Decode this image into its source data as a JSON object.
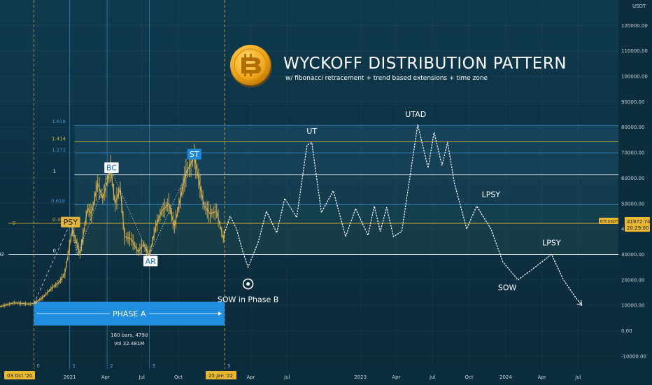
{
  "chart_data": {
    "type": "line",
    "title": "WYCKOFF DISTRIBUTION PATTERN",
    "subtitle": "w/ fibonacci retracement + trend based extensions + time zone",
    "currency": "USDT",
    "ylim": [
      -15000,
      130000
    ],
    "y_ticks": [
      "120000.00",
      "110000.00",
      "100000.00",
      "90000.00",
      "80000.00",
      "70000.00",
      "60000.00",
      "50000.00",
      "40000.00",
      "30000.00",
      "20000.00",
      "10000.00",
      "0.00",
      "-10000.00"
    ],
    "y_tick_values": [
      120000,
      110000,
      100000,
      90000,
      80000,
      70000,
      60000,
      50000,
      40000,
      30000,
      20000,
      10000,
      0,
      -10000
    ],
    "x_ticks": [
      "2021",
      "Apr",
      "Jul",
      "Oct",
      "Apr",
      "Jul",
      "2023",
      "Apr",
      "Jul",
      "Oct",
      "2024",
      "Apr",
      "Jul"
    ],
    "x_tick_dates": [
      "2021-01-01",
      "2021-04-01",
      "2021-07-01",
      "2021-10-01",
      "2022-04-01",
      "2022-07-01",
      "2023-01-01",
      "2023-04-01",
      "2023-07-01",
      "2023-10-01",
      "2024-01-01",
      "2024-04-01",
      "2024-07-01"
    ],
    "x_range": [
      "2020-07-10",
      "2024-10-10"
    ],
    "x_axis_flags": {
      "start_label": "03 Oct '20",
      "end_label": "25 Jan '22"
    },
    "time_zone_labels": [
      "0",
      "1",
      "2",
      "3",
      "5"
    ],
    "time_zone_dates": [
      "2020-10-03",
      "2021-01-01",
      "2021-04-05",
      "2021-07-20",
      "2022-01-25"
    ],
    "price_label": {
      "symbol": "BTCUSDT",
      "price": "41972.74",
      "countdown": "20:29:00",
      "value": 41972.74
    },
    "fib_levels": [
      {
        "label": "1.618",
        "value": 80700,
        "color": "#3a8fd4"
      },
      {
        "label": "1.414",
        "value": 74300,
        "color": "#d4b332"
      },
      {
        "label": "1.272",
        "value": 69900,
        "color": "#3a8fd4"
      },
      {
        "label": "1",
        "value": 61300,
        "color": "#e8edf0"
      },
      {
        "label": "0.618",
        "value": 49500,
        "color": "#3a8fd4"
      },
      {
        "label": "0.382",
        "value": 42200,
        "color": "#d4b332"
      },
      {
        "label": "0",
        "value": 42200,
        "color": "#d4b332"
      },
      {
        "label": "0",
        "value": 30000,
        "color": "#e8edf0"
      },
      {
        "label": "0.382",
        "value": 30000,
        "color": "#e8edf0"
      }
    ],
    "wyckoff_labels": [
      {
        "text": "PSY",
        "date": "2021-01-03",
        "value": 42300,
        "boxed": true,
        "box_color": "#e4b53b",
        "text_color": "#1b1b1b"
      },
      {
        "text": "BC",
        "date": "2021-04-16",
        "value": 63700,
        "boxed": true,
        "box_color": "#ffffff",
        "text_color": "#1a6fb5"
      },
      {
        "text": "AR",
        "date": "2021-07-23",
        "value": 27000,
        "boxed": true,
        "box_color": "#ffffff",
        "text_color": "#1a6fb5"
      },
      {
        "text": "ST",
        "date": "2021-11-10",
        "value": 69000,
        "boxed": true,
        "box_color": "#1e88d8",
        "text_color": "#ffffff"
      },
      {
        "text": "UT",
        "date": "2022-09-01",
        "value": 77500,
        "boxed": false
      },
      {
        "text": "UTAD",
        "date": "2023-05-20",
        "value": 84000,
        "boxed": false
      },
      {
        "text": "LPSY",
        "date": "2023-11-25",
        "value": 52500,
        "boxed": false
      },
      {
        "text": "LPSY",
        "date": "2024-04-25",
        "value": 33500,
        "boxed": false
      },
      {
        "text": "SOW",
        "date": "2024-01-05",
        "value": 16000,
        "boxed": false
      },
      {
        "text": "SOW in Phase B",
        "date": "2022-03-25",
        "value": 17000,
        "boxed": false
      }
    ],
    "phase_a": {
      "label": "PHASE A",
      "start": "2020-10-03",
      "end": "2022-01-25",
      "stats": [
        "160 bars, 479d",
        "Vol 32.481M"
      ]
    },
    "projection": {
      "dates": [
        "2022-01-25",
        "2022-02-08",
        "2022-02-24",
        "2022-03-12",
        "2022-03-25",
        "2022-04-20",
        "2022-05-10",
        "2022-06-05",
        "2022-06-25",
        "2022-07-25",
        "2022-08-20",
        "2022-09-01",
        "2022-09-25",
        "2022-10-25",
        "2022-11-25",
        "2022-12-20",
        "2023-01-20",
        "2023-02-05",
        "2023-02-20",
        "2023-03-08",
        "2023-03-25",
        "2023-04-15",
        "2023-05-25",
        "2023-06-20",
        "2023-07-05",
        "2023-07-25",
        "2023-08-08",
        "2023-08-25",
        "2023-09-25",
        "2023-10-20",
        "2023-11-25",
        "2023-12-25",
        "2024-02-01",
        "2024-03-15",
        "2024-04-25",
        "2024-05-25",
        "2024-06-25",
        "2024-07-10"
      ],
      "values": [
        38500,
        45000,
        40000,
        31000,
        25000,
        35000,
        47000,
        38500,
        52000,
        44500,
        73000,
        74000,
        46500,
        55000,
        37000,
        48000,
        37500,
        49000,
        39000,
        48500,
        37000,
        39000,
        81000,
        64000,
        78000,
        65000,
        74000,
        58000,
        40000,
        49000,
        40000,
        27000,
        20000,
        25000,
        30000,
        20000,
        13000,
        10000
      ]
    },
    "historical": {
      "dates": [
        "2020-07-10",
        "2020-08-15",
        "2020-09-20",
        "2020-10-03",
        "2020-10-25",
        "2020-11-15",
        "2020-12-05",
        "2020-12-20",
        "2021-01-08",
        "2021-01-27",
        "2021-02-15",
        "2021-02-25",
        "2021-03-12",
        "2021-03-25",
        "2021-04-14",
        "2021-04-25",
        "2021-05-08",
        "2021-05-19",
        "2021-06-05",
        "2021-06-22",
        "2021-07-05",
        "2021-07-20",
        "2021-08-05",
        "2021-08-20",
        "2021-09-07",
        "2021-09-21",
        "2021-10-10",
        "2021-10-20",
        "2021-11-10",
        "2021-11-28",
        "2021-12-05",
        "2021-12-20",
        "2022-01-05",
        "2022-01-22",
        "2022-01-25"
      ],
      "values": [
        9500,
        11000,
        10500,
        10700,
        13000,
        16500,
        19000,
        22500,
        40000,
        30000,
        48000,
        46000,
        58000,
        52000,
        63700,
        50000,
        56000,
        37000,
        36000,
        31000,
        34000,
        29500,
        41000,
        47000,
        50000,
        41000,
        55000,
        62000,
        68500,
        54000,
        49000,
        46000,
        47000,
        36000,
        38500
      ]
    }
  }
}
